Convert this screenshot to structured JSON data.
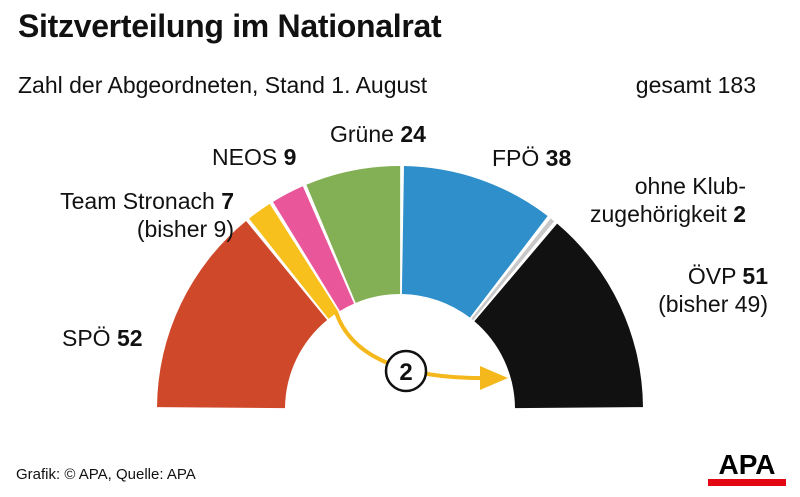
{
  "title": "Sitzverteilung im Nationalrat",
  "subtitle": "Zahl der Abgeordneten, Stand 1. August",
  "total_label": "gesamt 183",
  "footer": "Grafik: © APA, Quelle: APA",
  "logo_text": "APA",
  "transfer_label": "2",
  "chart_data": {
    "type": "pie",
    "subtype": "parliament-semicircle",
    "title": "Sitzverteilung im Nationalrat",
    "subtitle": "Zahl der Abgeordneten, Stand 1. August",
    "total": 183,
    "series": [
      {
        "name": "SPÖ",
        "value": 52,
        "color": "#d0482a",
        "label_name": "SPÖ",
        "label_value": "52",
        "note": ""
      },
      {
        "name": "Team Stronach",
        "value": 7,
        "color": "#f7c01c",
        "label_name": "Team Stronach",
        "label_value": "7",
        "note": "(bisher 9)"
      },
      {
        "name": "NEOS",
        "value": 9,
        "color": "#e9569a",
        "label_name": "NEOS",
        "label_value": "9",
        "note": ""
      },
      {
        "name": "Grüne",
        "value": 24,
        "color": "#83b054",
        "label_name": "Grüne",
        "label_value": "24",
        "note": ""
      },
      {
        "name": "FPÖ",
        "value": 38,
        "color": "#2e8fca",
        "label_name": "FPÖ",
        "label_value": "38",
        "note": ""
      },
      {
        "name": "ohne Klubzugehörigkeit",
        "value": 2,
        "color": "#c8c8c8",
        "label_name_line1": "ohne Klub-",
        "label_name_line2": "zugehörigkeit",
        "label_value": "2",
        "note": ""
      },
      {
        "name": "ÖVP",
        "value": 51,
        "color": "#111111",
        "label_name": "ÖVP",
        "label_value": "51",
        "note": "(bisher 49)"
      }
    ],
    "transfer": {
      "from": "Team Stronach",
      "to": "ÖVP",
      "value": 2,
      "color": "#f5b81c"
    }
  }
}
